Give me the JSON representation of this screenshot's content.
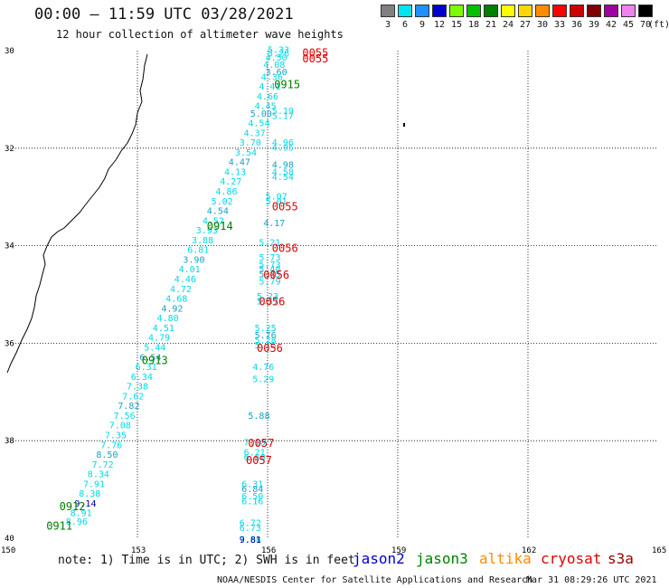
{
  "header": {
    "title": "00:00 – 11:59 UTC 03/28/2021",
    "subtitle": "12 hour collection of altimeter wave heights"
  },
  "legend": {
    "unit": "(ft)",
    "items": [
      {
        "label": "3",
        "color": "#808080"
      },
      {
        "label": "6",
        "color": "#00e5ee"
      },
      {
        "label": "9",
        "color": "#1e90ff"
      },
      {
        "label": "12",
        "color": "#0000cd"
      },
      {
        "label": "15",
        "color": "#7cfc00"
      },
      {
        "label": "18",
        "color": "#00c000"
      },
      {
        "label": "21",
        "color": "#008000"
      },
      {
        "label": "24",
        "color": "#ffff00"
      },
      {
        "label": "27",
        "color": "#ffd700"
      },
      {
        "label": "30",
        "color": "#ff8c00"
      },
      {
        "label": "33",
        "color": "#ff0000"
      },
      {
        "label": "36",
        "color": "#cc0000"
      },
      {
        "label": "39",
        "color": "#800000"
      },
      {
        "label": "42",
        "color": "#a000a0"
      },
      {
        "label": "45",
        "color": "#ee82ee"
      },
      {
        "label": "70",
        "color": "#000000"
      }
    ]
  },
  "axes": {
    "lat_labels": [
      "30",
      "32",
      "34",
      "36",
      "38",
      "40"
    ],
    "lat_values": [
      30,
      32,
      34,
      36,
      38,
      40
    ],
    "lon_labels": [
      "150",
      "153",
      "156",
      "159",
      "162",
      "165"
    ],
    "lon_values": [
      150,
      153,
      156,
      159,
      162,
      165
    ],
    "lat_range": [
      30,
      40
    ],
    "lon_range": [
      150,
      165
    ]
  },
  "colors": {
    "cyan": "#00d8e8",
    "teal": "#16a0c8",
    "navy": "#0000a0",
    "red": "#e00000",
    "green": "#008000",
    "coast": "#000000",
    "grid": "#000000"
  },
  "wave_heights_ascending": [
    {
      "lon": 156.25,
      "lat": 30.05,
      "text": "5.33"
    },
    {
      "lon": 156.25,
      "lat": 30.12,
      "text": "5.26"
    },
    {
      "lon": 156.2,
      "lat": 30.2,
      "text": "4.50"
    },
    {
      "lon": 156.15,
      "lat": 30.35,
      "text": "4.08"
    },
    {
      "lon": 156.2,
      "lat": 30.5,
      "text": "3.60"
    },
    {
      "lon": 156.1,
      "lat": 30.6,
      "text": "4.36"
    },
    {
      "lon": 156.05,
      "lat": 30.8,
      "text": "4.41"
    },
    {
      "lon": 156.0,
      "lat": 31.0,
      "text": "4.66"
    },
    {
      "lon": 155.95,
      "lat": 31.2,
      "text": "4.45"
    },
    {
      "lon": 155.85,
      "lat": 31.35,
      "text": "5.00"
    },
    {
      "lon": 155.8,
      "lat": 31.55,
      "text": "4.54"
    },
    {
      "lon": 155.7,
      "lat": 31.75,
      "text": "4.37"
    },
    {
      "lon": 155.6,
      "lat": 31.95,
      "text": "3.70"
    },
    {
      "lon": 155.5,
      "lat": 32.15,
      "text": "3.54"
    },
    {
      "lon": 155.35,
      "lat": 32.35,
      "text": "4.47"
    },
    {
      "lon": 155.25,
      "lat": 32.55,
      "text": "4.13"
    },
    {
      "lon": 155.15,
      "lat": 32.75,
      "text": "4.27"
    },
    {
      "lon": 155.05,
      "lat": 32.95,
      "text": "4.86"
    },
    {
      "lon": 154.95,
      "lat": 33.15,
      "text": "5.02"
    },
    {
      "lon": 154.85,
      "lat": 33.35,
      "text": "4.54"
    },
    {
      "lon": 154.75,
      "lat": 33.55,
      "text": "4.52"
    },
    {
      "lon": 154.6,
      "lat": 33.75,
      "text": "3.93"
    },
    {
      "lon": 154.5,
      "lat": 33.95,
      "text": "3.88"
    },
    {
      "lon": 154.4,
      "lat": 34.15,
      "text": "6.81"
    },
    {
      "lon": 154.3,
      "lat": 34.35,
      "text": "3.90"
    },
    {
      "lon": 154.2,
      "lat": 34.55,
      "text": "4.01"
    },
    {
      "lon": 154.1,
      "lat": 34.75,
      "text": "4.46"
    },
    {
      "lon": 154.0,
      "lat": 34.95,
      "text": "4.72"
    },
    {
      "lon": 153.9,
      "lat": 35.15,
      "text": "4.68"
    },
    {
      "lon": 153.8,
      "lat": 35.35,
      "text": "4.92"
    },
    {
      "lon": 153.7,
      "lat": 35.55,
      "text": "4.80"
    },
    {
      "lon": 153.6,
      "lat": 35.75,
      "text": "4.51"
    },
    {
      "lon": 153.5,
      "lat": 35.95,
      "text": "4.79"
    },
    {
      "lon": 153.4,
      "lat": 36.15,
      "text": "5.44"
    },
    {
      "lon": 153.3,
      "lat": 36.35,
      "text": "6.54"
    },
    {
      "lon": 153.2,
      "lat": 36.55,
      "text": "6.31"
    },
    {
      "lon": 153.1,
      "lat": 36.75,
      "text": "6.34"
    },
    {
      "lon": 153.0,
      "lat": 36.95,
      "text": "7.38"
    },
    {
      "lon": 152.9,
      "lat": 37.15,
      "text": "7.62"
    },
    {
      "lon": 152.8,
      "lat": 37.35,
      "text": "7.82"
    },
    {
      "lon": 152.7,
      "lat": 37.55,
      "text": "7.56"
    },
    {
      "lon": 152.6,
      "lat": 37.75,
      "text": "7.08"
    },
    {
      "lon": 152.5,
      "lat": 37.95,
      "text": "7.35"
    },
    {
      "lon": 152.4,
      "lat": 38.15,
      "text": "7.76"
    },
    {
      "lon": 152.3,
      "lat": 38.35,
      "text": "8.50"
    },
    {
      "lon": 152.2,
      "lat": 38.55,
      "text": "7.72"
    },
    {
      "lon": 152.1,
      "lat": 38.75,
      "text": "8.34"
    },
    {
      "lon": 152.0,
      "lat": 38.95,
      "text": "7.91"
    },
    {
      "lon": 151.9,
      "lat": 39.15,
      "text": "8.38"
    },
    {
      "lon": 151.8,
      "lat": 39.35,
      "text": "9.14",
      "dark": true
    },
    {
      "lon": 151.7,
      "lat": 39.55,
      "text": "8.91"
    },
    {
      "lon": 151.6,
      "lat": 39.72,
      "text": "8.96"
    }
  ],
  "wave_heights_descending": [
    {
      "lon": 156.35,
      "lat": 31.3,
      "text": "5.19"
    },
    {
      "lon": 156.35,
      "lat": 31.4,
      "text": "5.17"
    },
    {
      "lon": 156.35,
      "lat": 31.95,
      "text": "4.96"
    },
    {
      "lon": 156.35,
      "lat": 32.05,
      "text": "4.95"
    },
    {
      "lon": 156.35,
      "lat": 32.4,
      "text": "4.98"
    },
    {
      "lon": 156.35,
      "lat": 32.55,
      "text": "4.58"
    },
    {
      "lon": 156.35,
      "lat": 32.65,
      "text": "4.54"
    },
    {
      "lon": 156.2,
      "lat": 33.05,
      "text": "5.07"
    },
    {
      "lon": 156.2,
      "lat": 33.15,
      "text": "5.01"
    },
    {
      "lon": 156.15,
      "lat": 33.6,
      "text": "4.17"
    },
    {
      "lon": 156.05,
      "lat": 34.0,
      "text": "5.21"
    },
    {
      "lon": 156.05,
      "lat": 34.3,
      "text": "5.73"
    },
    {
      "lon": 156.05,
      "lat": 34.45,
      "text": "5.73"
    },
    {
      "lon": 156.05,
      "lat": 34.55,
      "text": "5.40"
    },
    {
      "lon": 156.05,
      "lat": 34.65,
      "text": "5.45"
    },
    {
      "lon": 156.05,
      "lat": 34.8,
      "text": "5.79"
    },
    {
      "lon": 156.0,
      "lat": 35.1,
      "text": "5.23"
    },
    {
      "lon": 156.0,
      "lat": 35.2,
      "text": "5.57"
    },
    {
      "lon": 155.95,
      "lat": 35.75,
      "text": "5.25"
    },
    {
      "lon": 155.95,
      "lat": 35.9,
      "text": "5.76"
    },
    {
      "lon": 155.95,
      "lat": 36.0,
      "text": "5.78"
    },
    {
      "lon": 155.95,
      "lat": 36.1,
      "text": "5.75"
    },
    {
      "lon": 155.9,
      "lat": 36.55,
      "text": "4.76"
    },
    {
      "lon": 155.9,
      "lat": 36.8,
      "text": "5.29"
    },
    {
      "lon": 155.8,
      "lat": 37.55,
      "text": "5.88"
    },
    {
      "lon": 155.7,
      "lat": 38.1,
      "text": "7.10"
    },
    {
      "lon": 155.7,
      "lat": 38.3,
      "text": "6.21"
    },
    {
      "lon": 155.7,
      "lat": 38.4,
      "text": "6.69"
    },
    {
      "lon": 155.65,
      "lat": 38.95,
      "text": "6.31"
    },
    {
      "lon": 155.65,
      "lat": 39.05,
      "text": "6.84"
    },
    {
      "lon": 155.65,
      "lat": 39.2,
      "text": "6.50"
    },
    {
      "lon": 155.65,
      "lat": 39.3,
      "text": "6.16"
    },
    {
      "lon": 155.6,
      "lat": 39.75,
      "text": "6.72"
    },
    {
      "lon": 155.6,
      "lat": 39.85,
      "text": "6.73"
    },
    {
      "lon": 155.6,
      "lat": 40.3,
      "text": "7.61"
    },
    {
      "lon": 155.6,
      "lat": 40.38,
      "text": "7.58"
    },
    {
      "lon": 155.6,
      "lat": 40.48,
      "text": "9.81",
      "dark": true
    }
  ],
  "time_labels": [
    {
      "lon": 156.8,
      "lat": 30.05,
      "text": "0055",
      "color": "red"
    },
    {
      "lon": 156.8,
      "lat": 30.17,
      "text": "0055",
      "color": "red"
    },
    {
      "lon": 156.15,
      "lat": 30.7,
      "text": "0915",
      "color": "green"
    },
    {
      "lon": 156.1,
      "lat": 33.2,
      "text": "0055",
      "color": "red"
    },
    {
      "lon": 154.6,
      "lat": 33.6,
      "text": "0914",
      "color": "green"
    },
    {
      "lon": 156.1,
      "lat": 34.05,
      "text": "0056",
      "color": "red"
    },
    {
      "lon": 155.9,
      "lat": 34.6,
      "text": "0056",
      "color": "red"
    },
    {
      "lon": 155.8,
      "lat": 35.15,
      "text": "0056",
      "color": "red"
    },
    {
      "lon": 155.75,
      "lat": 36.1,
      "text": "0056",
      "color": "red"
    },
    {
      "lon": 153.1,
      "lat": 36.35,
      "text": "0913",
      "color": "green"
    },
    {
      "lon": 155.55,
      "lat": 38.05,
      "text": "0057",
      "color": "red"
    },
    {
      "lon": 155.5,
      "lat": 38.4,
      "text": "0057",
      "color": "red"
    },
    {
      "lon": 151.2,
      "lat": 39.35,
      "text": "0912",
      "color": "green"
    },
    {
      "lon": 150.9,
      "lat": 39.75,
      "text": "0911",
      "color": "green"
    }
  ],
  "footer": {
    "note": "note: 1) Time is in UTC; 2) SWH is in feet",
    "satellites": [
      {
        "name": "jason2",
        "color": "#0000d0"
      },
      {
        "name": "jason3",
        "color": "#008000"
      },
      {
        "name": "altika",
        "color": "#ff8c00"
      },
      {
        "name": "cryosat",
        "color": "#e00000"
      },
      {
        "name": "s3a",
        "color": "#a00000"
      }
    ],
    "credit": "NOAA/NESDIS Center for Satellite Applications and Research",
    "timestamp": "Mar 31 08:29:26 UTC 2021"
  }
}
